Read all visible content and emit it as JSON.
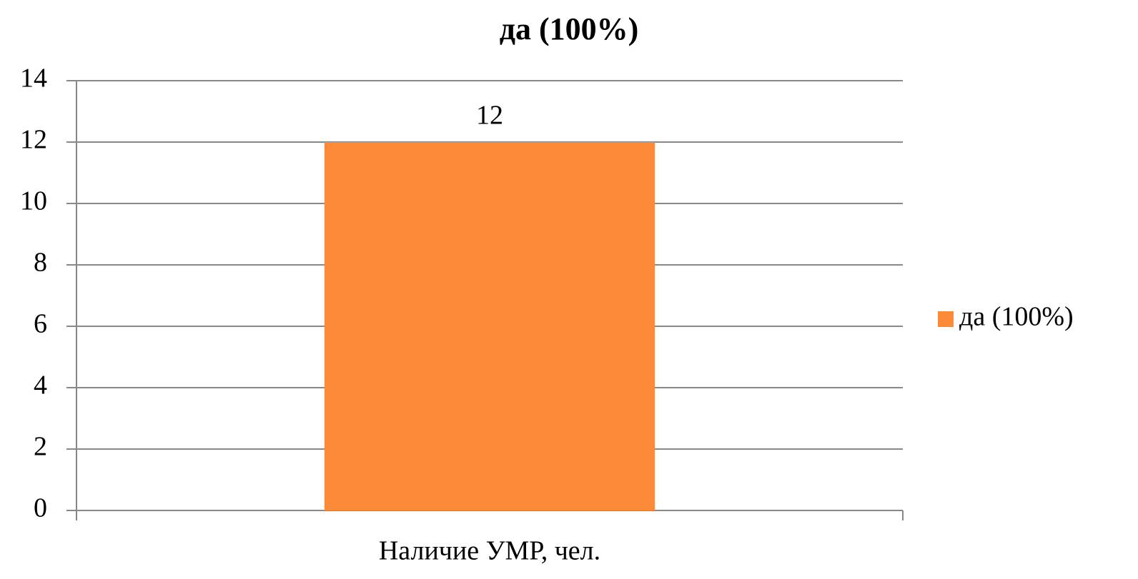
{
  "chart_data": {
    "type": "bar",
    "title": "да (100%)",
    "categories": [
      "Наличие УМР, чел."
    ],
    "series": [
      {
        "name": "да (100%)",
        "color": "#fd8a38",
        "values": [
          12
        ]
      }
    ],
    "ylim": [
      0,
      14
    ],
    "yticks": [
      0,
      2,
      4,
      6,
      8,
      10,
      12,
      14
    ],
    "grid": true,
    "legend": "right"
  }
}
